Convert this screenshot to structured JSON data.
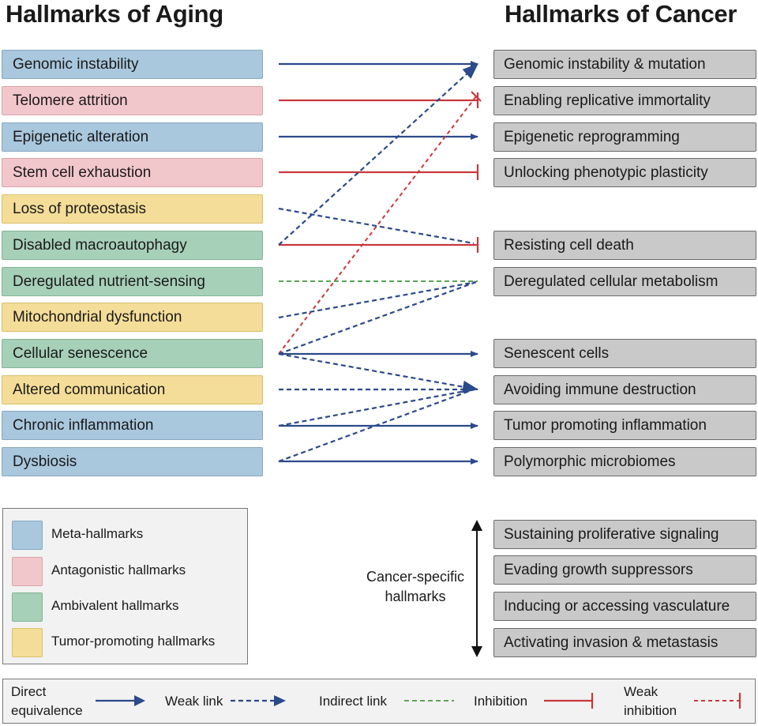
{
  "titles": {
    "aging": "Hallmarks of Aging",
    "cancer": "Hallmarks of Cancer"
  },
  "aging": [
    "Genomic instability",
    "Telomere attrition",
    "Epigenetic alteration",
    "Stem cell exhaustion",
    "Loss of proteostasis",
    "Disabled macroautophagy",
    "Deregulated nutrient-sensing",
    "Mitochondrial dysfunction",
    "Cellular senescence",
    "Altered communication",
    "Chronic inflammation",
    "Dysbiosis"
  ],
  "cancer": [
    "Genomic instability & mutation",
    "Enabling replicative immortality",
    "Epigenetic reprogramming",
    "Unlocking phenotypic plasticity",
    "Resisting cell death",
    "Deregulated cellular metabolism",
    "Senescent cells",
    "Avoiding immune destruction",
    "Tumor promoting inflammation",
    "Polymorphic microbiomes"
  ],
  "cancer_specific": [
    "Sustaining proliferative signaling",
    "Evading growth suppressors",
    "Inducing or accessing vasculature",
    "Activating invasion & metastasis"
  ],
  "cancer_specific_label": {
    "line1": "Cancer-specific",
    "line2": "hallmarks"
  },
  "legend": {
    "meta": "Meta-hallmarks",
    "antagonistic": "Antagonistic hallmarks",
    "ambivalent": "Ambivalent hallmarks",
    "tumor": "Tumor-promoting hallmarks"
  },
  "key": {
    "direct_line1": "Direct",
    "direct_line2": "equivalence",
    "weak": "Weak link",
    "indirect": "Indirect link",
    "inhibition": "Inhibition",
    "weak_inhibition_line1": "Weak",
    "weak_inhibition_line2": "inhibition"
  },
  "colors": {
    "blue_link": "#2b4a8b",
    "red_link": "#c8383c",
    "green_link": "#5aa654",
    "meta": "#a9c7dd",
    "antagonistic": "#f2c7cb",
    "ambivalent": "#a7d0b8",
    "tumor": "#f4dd98",
    "cancer_box": "#c9c9c9"
  }
}
